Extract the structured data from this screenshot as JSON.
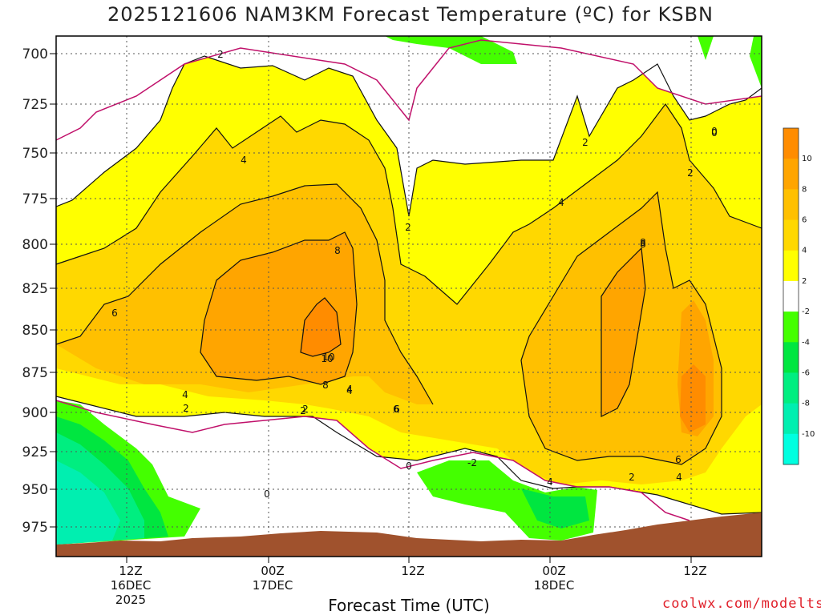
{
  "title": "2025121606 NAM3KM Forecast Temperature (ºC) for KSBN",
  "x_axis_title": "Forecast Time (UTC)",
  "credit": "coolwx.com/modelts",
  "chart_data": {
    "type": "heatmap",
    "title": "2025121606 NAM3KM Forecast Temperature (ºC) for KSBN",
    "xlabel": "Forecast Time (UTC)",
    "ylabel": "",
    "y_ticks": [
      "700",
      "725",
      "750",
      "775",
      "800",
      "825",
      "850",
      "875",
      "900",
      "925",
      "950",
      "975"
    ],
    "x_ticks": [
      {
        "lines": [
          "12Z",
          "16DEC",
          "2025"
        ]
      },
      {
        "lines": [
          "00Z",
          "17DEC"
        ]
      },
      {
        "lines": [
          "12Z"
        ]
      },
      {
        "lines": [
          "00Z",
          "18DEC"
        ]
      },
      {
        "lines": [
          "12Z"
        ]
      }
    ],
    "grid": true,
    "colorbar": {
      "labels": [
        "10",
        "8",
        "6",
        "4",
        "2",
        "-2",
        "-4",
        "-6",
        "-8",
        "-10"
      ],
      "colors": [
        "#ff8c00",
        "#ffa500",
        "#ffc000",
        "#ffd800",
        "#ffff00",
        "#ffffff",
        "#44ff00",
        "#00e640",
        "#00ee80",
        "#00efb0",
        "#00ffe0"
      ]
    },
    "contour_labels": [
      "2",
      "4",
      "6",
      "8",
      "10",
      "0",
      "2",
      "4",
      "8",
      "6",
      "4",
      "2",
      "0",
      "-2",
      "2",
      "4",
      "6",
      "8",
      "10",
      "0",
      "2",
      "4",
      "6",
      "2",
      "4",
      "2",
      "8",
      "4",
      "2",
      "0"
    ],
    "ground_color": "#a0522d"
  }
}
